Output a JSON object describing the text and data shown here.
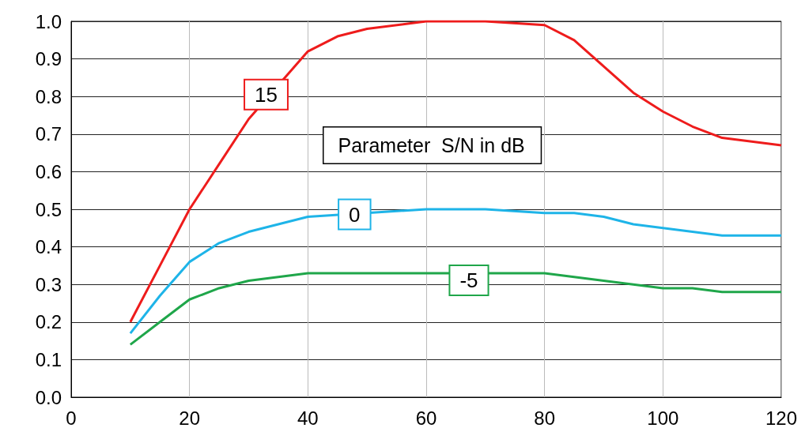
{
  "chart_data": {
    "type": "line",
    "annotations": [
      "Parameter  S/N in dB"
    ],
    "xlim": [
      0,
      120
    ],
    "xticks": [
      0,
      20,
      40,
      60,
      80,
      100,
      120
    ],
    "ylim": [
      0,
      1.0
    ],
    "yticks": [
      {
        "value": 0,
        "label": "0.0"
      },
      {
        "value": 0.1,
        "label": "0.1"
      },
      {
        "value": 0.2,
        "label": "0.2"
      },
      {
        "value": 0.3,
        "label": "0.3"
      },
      {
        "value": 0.4,
        "label": "0.4"
      },
      {
        "value": 0.5,
        "label": "0.5"
      },
      {
        "value": 0.6,
        "label": "0.6"
      },
      {
        "value": 0.7,
        "label": "0.7"
      },
      {
        "value": 0.8,
        "label": "0.8"
      },
      {
        "value": 0.9,
        "label": "0.9"
      },
      {
        "value": 1.0,
        "label": "1.0"
      }
    ],
    "grid": true,
    "marker": "none",
    "legend": false,
    "series": [
      {
        "name": "15",
        "color": "#ee1c1c",
        "x": [
          10,
          15,
          20,
          25,
          30,
          40,
          45,
          50,
          60,
          70,
          80,
          85,
          90,
          95,
          100,
          105,
          110,
          115,
          120
        ],
        "values": [
          0.2,
          0.35,
          0.5,
          0.62,
          0.74,
          0.92,
          0.96,
          0.98,
          1.0,
          1.0,
          0.99,
          0.95,
          0.88,
          0.81,
          0.76,
          0.72,
          0.69,
          0.68,
          0.67
        ]
      },
      {
        "name": "0",
        "color": "#1eb4e8",
        "x": [
          10,
          15,
          20,
          25,
          30,
          35,
          40,
          60,
          70,
          80,
          85,
          90,
          95,
          100,
          105,
          110,
          115,
          120
        ],
        "values": [
          0.17,
          0.27,
          0.36,
          0.41,
          0.44,
          0.46,
          0.48,
          0.5,
          0.5,
          0.49,
          0.49,
          0.48,
          0.46,
          0.45,
          0.44,
          0.43,
          0.43,
          0.43
        ]
      },
      {
        "name": "-5",
        "color": "#1fa64a",
        "x": [
          10,
          15,
          20,
          25,
          30,
          35,
          40,
          45,
          50,
          60,
          80,
          85,
          90,
          95,
          100,
          105,
          110,
          115,
          120
        ],
        "values": [
          0.14,
          0.2,
          0.26,
          0.29,
          0.31,
          0.32,
          0.33,
          0.33,
          0.33,
          0.33,
          0.33,
          0.32,
          0.31,
          0.3,
          0.29,
          0.29,
          0.28,
          0.28,
          0.28
        ]
      }
    ]
  }
}
